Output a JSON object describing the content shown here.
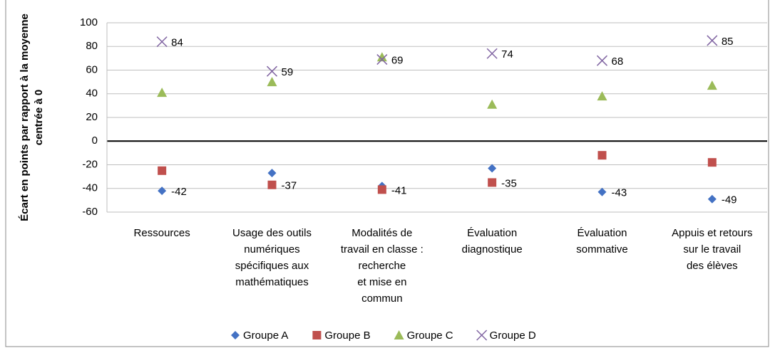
{
  "chart_data": {
    "type": "scatter",
    "y_label": "Écart en points par rapport à la moyenne\ncentrée à 0",
    "categories": [
      "Ressources",
      "Usage des outils\nnumériques\nspécifiques aux\nmathématiques",
      "Modalités de\ntravail en classe :\nrecherche\net mise en\ncommun",
      "Évaluation\ndiagnostique",
      "Évaluation\nsommative",
      "Appuis et retours\nsur le travail\ndes élèves"
    ],
    "series": [
      {
        "name": "Groupe A",
        "color": "#4472c4",
        "marker": "diamond",
        "values": [
          -42,
          -27,
          -38,
          -23,
          -43,
          -49
        ],
        "value_labels": [
          "-42",
          null,
          null,
          null,
          "-43",
          "-49"
        ]
      },
      {
        "name": "Groupe B",
        "color": "#c0504d",
        "marker": "square",
        "values": [
          -25,
          -37,
          -41,
          -35,
          -12,
          -18
        ],
        "value_labels": [
          null,
          "-37",
          "-41",
          "-35",
          null,
          null
        ]
      },
      {
        "name": "Groupe C",
        "color": "#9bbb59",
        "marker": "triangle",
        "values": [
          41,
          50,
          71,
          31,
          38,
          47
        ],
        "value_labels": [
          null,
          null,
          null,
          null,
          null,
          null
        ]
      },
      {
        "name": "Groupe D",
        "color": "#8064a2",
        "marker": "x",
        "values": [
          84,
          59,
          69,
          74,
          68,
          85
        ],
        "value_labels": [
          "84",
          "59",
          "69",
          "74",
          "68",
          "85"
        ]
      }
    ],
    "ylim": [
      -60,
      100
    ],
    "yticks": [
      -60,
      -40,
      -20,
      0,
      20,
      40,
      60,
      80,
      100
    ],
    "grid": true,
    "legend": "bottom"
  }
}
